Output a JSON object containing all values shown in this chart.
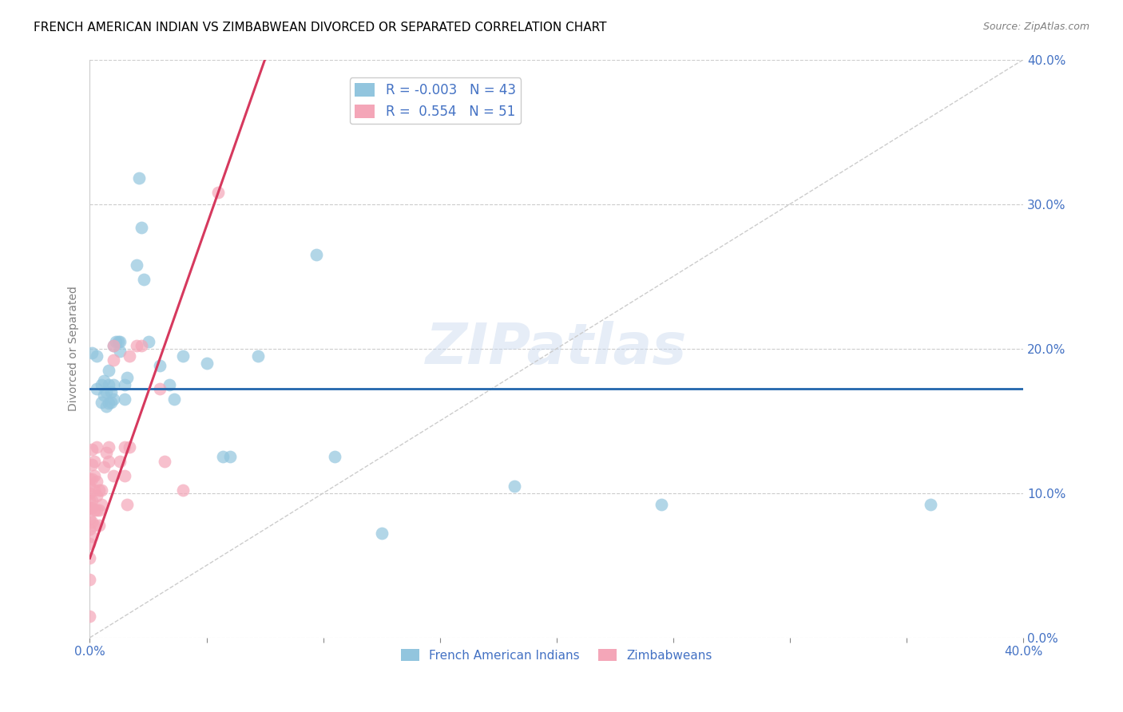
{
  "title": "FRENCH AMERICAN INDIAN VS ZIMBABWEAN DIVORCED OR SEPARATED CORRELATION CHART",
  "source": "Source: ZipAtlas.com",
  "ylabel": "Divorced or Separated",
  "xlim": [
    0.0,
    0.4
  ],
  "ylim": [
    0.0,
    0.4
  ],
  "legend_r1": "-0.003",
  "legend_n1": "43",
  "legend_r2": "0.554",
  "legend_n2": "51",
  "color_blue": "#92c5de",
  "color_pink": "#f4a6b8",
  "color_line_blue": "#2166ac",
  "color_line_pink": "#d6395e",
  "watermark": "ZIPatlas",
  "blue_line_y": 0.172,
  "blue_points": [
    [
      0.001,
      0.197
    ],
    [
      0.003,
      0.195
    ],
    [
      0.003,
      0.172
    ],
    [
      0.005,
      0.175
    ],
    [
      0.005,
      0.163
    ],
    [
      0.006,
      0.178
    ],
    [
      0.006,
      0.168
    ],
    [
      0.007,
      0.17
    ],
    [
      0.007,
      0.16
    ],
    [
      0.008,
      0.175
    ],
    [
      0.008,
      0.185
    ],
    [
      0.008,
      0.162
    ],
    [
      0.009,
      0.17
    ],
    [
      0.009,
      0.163
    ],
    [
      0.01,
      0.202
    ],
    [
      0.01,
      0.175
    ],
    [
      0.01,
      0.165
    ],
    [
      0.011,
      0.205
    ],
    [
      0.012,
      0.205
    ],
    [
      0.013,
      0.198
    ],
    [
      0.013,
      0.205
    ],
    [
      0.015,
      0.175
    ],
    [
      0.015,
      0.165
    ],
    [
      0.016,
      0.18
    ],
    [
      0.02,
      0.258
    ],
    [
      0.021,
      0.318
    ],
    [
      0.022,
      0.284
    ],
    [
      0.023,
      0.248
    ],
    [
      0.025,
      0.205
    ],
    [
      0.03,
      0.188
    ],
    [
      0.034,
      0.175
    ],
    [
      0.036,
      0.165
    ],
    [
      0.04,
      0.195
    ],
    [
      0.05,
      0.19
    ],
    [
      0.057,
      0.125
    ],
    [
      0.06,
      0.125
    ],
    [
      0.072,
      0.195
    ],
    [
      0.097,
      0.265
    ],
    [
      0.105,
      0.125
    ],
    [
      0.125,
      0.072
    ],
    [
      0.182,
      0.105
    ],
    [
      0.245,
      0.092
    ],
    [
      0.36,
      0.092
    ]
  ],
  "pink_points": [
    [
      0.0,
      0.015
    ],
    [
      0.0,
      0.04
    ],
    [
      0.0,
      0.055
    ],
    [
      0.0,
      0.065
    ],
    [
      0.0,
      0.075
    ],
    [
      0.0,
      0.082
    ],
    [
      0.0,
      0.09
    ],
    [
      0.0,
      0.095
    ],
    [
      0.0,
      0.1
    ],
    [
      0.0,
      0.105
    ],
    [
      0.0,
      0.11
    ],
    [
      0.001,
      0.07
    ],
    [
      0.001,
      0.08
    ],
    [
      0.001,
      0.09
    ],
    [
      0.001,
      0.095
    ],
    [
      0.001,
      0.11
    ],
    [
      0.001,
      0.12
    ],
    [
      0.001,
      0.13
    ],
    [
      0.002,
      0.078
    ],
    [
      0.002,
      0.088
    ],
    [
      0.002,
      0.102
    ],
    [
      0.002,
      0.112
    ],
    [
      0.002,
      0.122
    ],
    [
      0.003,
      0.088
    ],
    [
      0.003,
      0.098
    ],
    [
      0.003,
      0.108
    ],
    [
      0.003,
      0.132
    ],
    [
      0.004,
      0.078
    ],
    [
      0.004,
      0.088
    ],
    [
      0.004,
      0.102
    ],
    [
      0.005,
      0.092
    ],
    [
      0.005,
      0.102
    ],
    [
      0.006,
      0.118
    ],
    [
      0.007,
      0.128
    ],
    [
      0.008,
      0.122
    ],
    [
      0.008,
      0.132
    ],
    [
      0.01,
      0.112
    ],
    [
      0.01,
      0.192
    ],
    [
      0.01,
      0.202
    ],
    [
      0.013,
      0.122
    ],
    [
      0.015,
      0.112
    ],
    [
      0.015,
      0.132
    ],
    [
      0.016,
      0.092
    ],
    [
      0.017,
      0.132
    ],
    [
      0.017,
      0.195
    ],
    [
      0.02,
      0.202
    ],
    [
      0.022,
      0.202
    ],
    [
      0.03,
      0.172
    ],
    [
      0.032,
      0.122
    ],
    [
      0.04,
      0.102
    ],
    [
      0.055,
      0.308
    ]
  ],
  "pink_line_x0": 0.0,
  "pink_line_y0": 0.055,
  "pink_line_x1": 0.055,
  "pink_line_y1": 0.308
}
